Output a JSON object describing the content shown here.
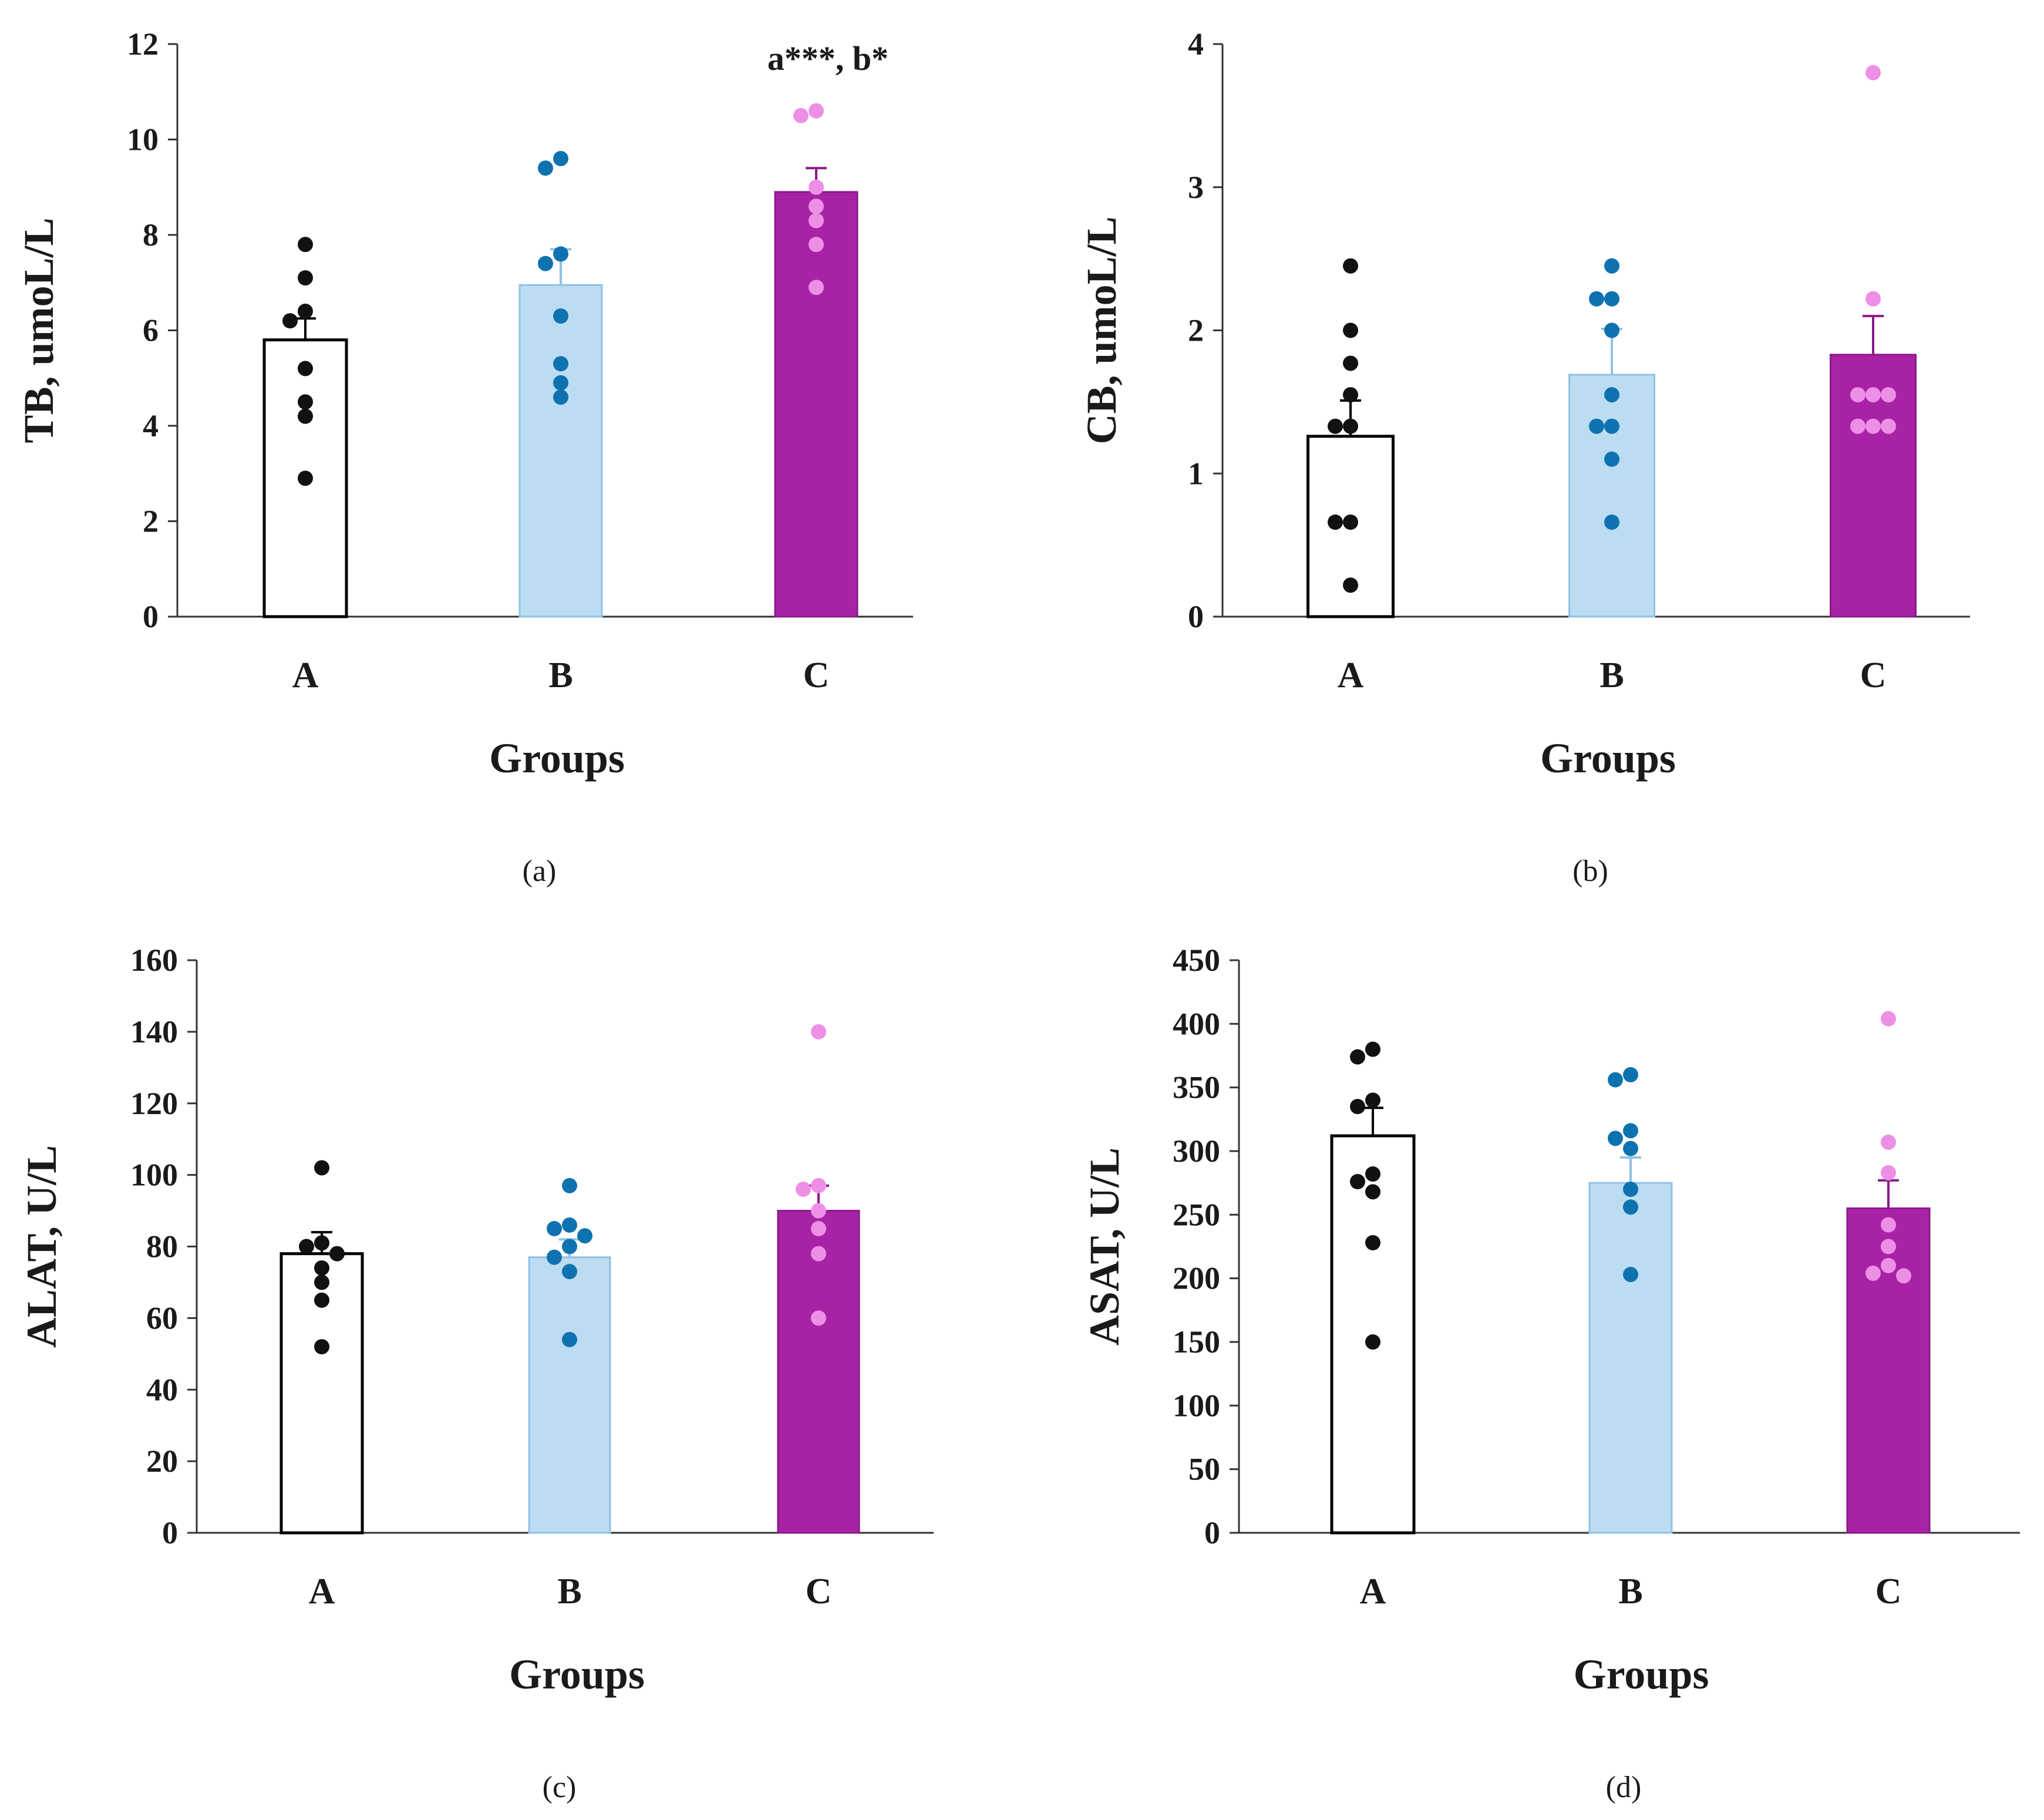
{
  "figure": {
    "group_colors": {
      "A": {
        "bar_fill": "#ffffff",
        "bar_stroke": "#000000",
        "dot": "#111111"
      },
      "B": {
        "bar_fill": "#bcdcf2",
        "bar_stroke": "#8fc1e6",
        "dot": "#0f72b0"
      },
      "C": {
        "bar_fill": "#a822a6",
        "bar_stroke": "#8a1a8a",
        "dot": "#ee8fe6"
      }
    }
  },
  "chart_data": [
    {
      "id": "a",
      "type": "bar",
      "panel_label": "(a)",
      "xlabel": "Groups",
      "ylabel": "TB, umoL/L",
      "ylim": [
        0,
        12
      ],
      "yticks": [
        0,
        2,
        4,
        6,
        8,
        10,
        12
      ],
      "categories": [
        "A",
        "B",
        "C"
      ],
      "values": [
        5.8,
        6.95,
        8.9
      ],
      "errors": [
        0.45,
        0.75,
        0.5
      ],
      "points": [
        [
          7.8,
          7.1,
          6.4,
          6.2,
          5.2,
          4.5,
          4.2,
          2.9
        ],
        [
          9.6,
          9.4,
          7.6,
          7.4,
          6.3,
          5.3,
          4.9,
          4.6
        ],
        [
          10.6,
          10.5,
          9.0,
          8.6,
          8.3,
          7.8,
          6.9
        ]
      ],
      "annotations": [
        {
          "category": "C",
          "text": "a***, b*"
        }
      ]
    },
    {
      "id": "b",
      "type": "bar",
      "panel_label": "(b)",
      "xlabel": "Groups",
      "ylabel": "CB, umoL/L",
      "ylim": [
        0,
        4
      ],
      "yticks": [
        0,
        1,
        2,
        3,
        4
      ],
      "categories": [
        "A",
        "B",
        "C"
      ],
      "values": [
        1.26,
        1.69,
        1.83
      ],
      "errors": [
        0.25,
        0.32,
        0.27
      ],
      "points": [
        [
          2.45,
          2.0,
          1.77,
          1.55,
          1.33,
          1.33,
          0.66,
          0.66,
          0.22
        ],
        [
          2.45,
          2.22,
          2.22,
          2.0,
          1.55,
          1.33,
          1.33,
          1.1,
          0.66
        ],
        [
          3.8,
          2.22,
          1.55,
          1.55,
          1.55,
          1.33,
          1.33,
          1.33
        ]
      ],
      "annotations": []
    },
    {
      "id": "c",
      "type": "bar",
      "panel_label": "(c)",
      "xlabel": "Groups",
      "ylabel": "ALAT, U/L",
      "ylim": [
        0,
        160
      ],
      "yticks": [
        0,
        20,
        40,
        60,
        80,
        100,
        120,
        140,
        160
      ],
      "categories": [
        "A",
        "B",
        "C"
      ],
      "values": [
        78,
        77,
        90
      ],
      "errors": [
        6,
        5,
        7
      ],
      "points": [
        [
          102,
          81,
          80,
          78,
          74,
          70,
          65,
          52
        ],
        [
          97,
          86,
          85,
          83,
          80,
          77,
          73,
          54
        ],
        [
          140,
          97,
          96,
          90,
          85,
          78,
          60
        ]
      ],
      "annotations": []
    },
    {
      "id": "d",
      "type": "bar",
      "panel_label": "(d)",
      "xlabel": "Groups",
      "ylabel": "ASAT, U/L",
      "ylim": [
        0,
        450
      ],
      "yticks": [
        0,
        50,
        100,
        150,
        200,
        250,
        300,
        350,
        400,
        450
      ],
      "categories": [
        "A",
        "B",
        "C"
      ],
      "values": [
        312,
        275,
        255
      ],
      "errors": [
        22,
        20,
        22
      ],
      "points": [
        [
          380,
          374,
          340,
          335,
          282,
          276,
          268,
          228,
          150
        ],
        [
          360,
          356,
          316,
          310,
          302,
          270,
          256,
          203
        ],
        [
          404,
          307,
          283,
          242,
          225,
          210,
          204,
          202
        ]
      ],
      "annotations": []
    }
  ]
}
